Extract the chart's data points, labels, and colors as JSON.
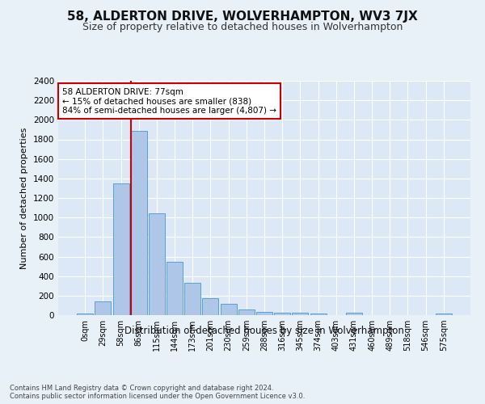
{
  "title": "58, ALDERTON DRIVE, WOLVERHAMPTON, WV3 7JX",
  "subtitle": "Size of property relative to detached houses in Wolverhampton",
  "xlabel": "Distribution of detached houses by size in Wolverhampton",
  "ylabel": "Number of detached properties",
  "footer_line1": "Contains HM Land Registry data © Crown copyright and database right 2024.",
  "footer_line2": "Contains public sector information licensed under the Open Government Licence v3.0.",
  "bar_labels": [
    "0sqm",
    "29sqm",
    "58sqm",
    "86sqm",
    "115sqm",
    "144sqm",
    "173sqm",
    "201sqm",
    "230sqm",
    "259sqm",
    "288sqm",
    "316sqm",
    "345sqm",
    "374sqm",
    "403sqm",
    "431sqm",
    "460sqm",
    "489sqm",
    "518sqm",
    "546sqm",
    "575sqm"
  ],
  "bar_values": [
    20,
    140,
    1350,
    1890,
    1040,
    545,
    335,
    175,
    120,
    60,
    35,
    28,
    22,
    18,
    0,
    25,
    0,
    0,
    0,
    0,
    20
  ],
  "bar_color": "#aec6e8",
  "bar_edge_color": "#5a9fd4",
  "ylim": [
    0,
    2400
  ],
  "yticks": [
    0,
    200,
    400,
    600,
    800,
    1000,
    1200,
    1400,
    1600,
    1800,
    2000,
    2200,
    2400
  ],
  "annotation_title": "58 ALDERTON DRIVE: 77sqm",
  "annotation_line1": "← 15% of detached houses are smaller (838)",
  "annotation_line2": "84% of semi-detached houses are larger (4,807) →",
  "annotation_box_color": "#ffffff",
  "annotation_box_edge": "#cc0000",
  "red_line_color": "#cc0000",
  "bg_color": "#e8f0f8",
  "plot_bg_color": "#dce8f5",
  "grid_color": "#ffffff",
  "title_fontsize": 11,
  "subtitle_fontsize": 9
}
